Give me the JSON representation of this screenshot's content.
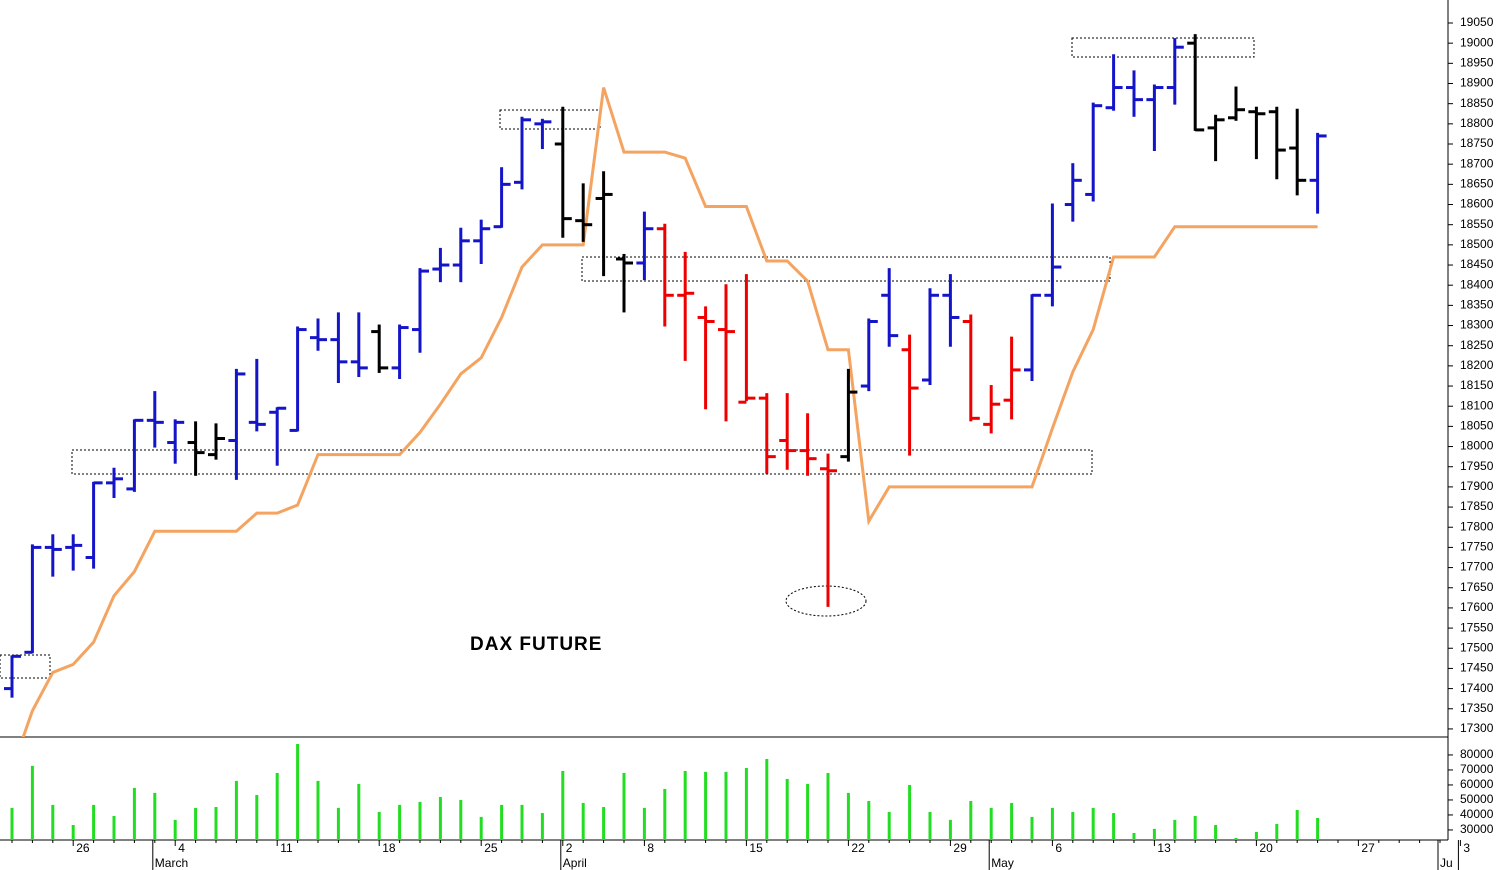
{
  "chart_data": {
    "type": "ohlc",
    "title": "DAX FUTURE",
    "categories": [
      null,
      null,
      null,
      "26",
      null,
      null,
      null,
      null,
      "4",
      null,
      null,
      null,
      null,
      "11",
      null,
      null,
      null,
      null,
      "18",
      null,
      null,
      null,
      null,
      "25",
      null,
      null,
      null,
      "2",
      null,
      null,
      null,
      "8",
      null,
      null,
      null,
      null,
      "15",
      null,
      null,
      null,
      null,
      "22",
      null,
      null,
      null,
      null,
      "29",
      null,
      null,
      null,
      null,
      "6",
      null,
      null,
      null,
      null,
      "13",
      null,
      null,
      null,
      null,
      "20",
      null,
      null,
      null,
      null,
      "27",
      null,
      null,
      null,
      null,
      "3"
    ],
    "months": [
      null,
      null,
      null,
      null,
      null,
      null,
      null,
      "March",
      null,
      null,
      null,
      null,
      null,
      null,
      null,
      null,
      null,
      null,
      null,
      null,
      null,
      null,
      null,
      null,
      null,
      null,
      null,
      "April",
      null,
      null,
      null,
      null,
      null,
      null,
      null,
      null,
      null,
      null,
      null,
      null,
      null,
      null,
      null,
      null,
      null,
      null,
      null,
      null,
      "May",
      null,
      null,
      null,
      null,
      null,
      null,
      null,
      null,
      null,
      null,
      null,
      null,
      null,
      null,
      null,
      null,
      null,
      null,
      null,
      null,
      null,
      "Ju"
    ],
    "open": [
      17400,
      17490,
      17750,
      17750,
      17725,
      17910,
      17895,
      18065,
      18010,
      18010,
      17980,
      18015,
      18060,
      18085,
      18040,
      18270,
      18265,
      18210,
      18285,
      18195,
      18290,
      18440,
      18450,
      18510,
      18545,
      18655,
      18800,
      18750,
      18560,
      18615,
      18465,
      18455,
      18540,
      18375,
      18320,
      18290,
      18110,
      18120,
      18015,
      17990,
      17945,
      17975,
      18150,
      18375,
      18240,
      18165,
      18375,
      18310,
      18055,
      18115,
      18190,
      18375,
      18600,
      18625,
      18840,
      18890,
      18860,
      18890,
      19000,
      18790,
      18815,
      18830,
      18830,
      18740,
      18660,
      null,
      null,
      null,
      null,
      null,
      null
    ],
    "high": [
      17480,
      17755,
      17780,
      17780,
      17910,
      17945,
      18065,
      18135,
      18065,
      18060,
      18055,
      18190,
      18215,
      18095,
      18295,
      18315,
      18330,
      18330,
      18300,
      18300,
      18440,
      18490,
      18540,
      18560,
      18690,
      18815,
      18810,
      18840,
      18650,
      18680,
      18475,
      18580,
      18550,
      18480,
      18345,
      18400,
      18425,
      18130,
      18130,
      18080,
      17980,
      18190,
      18315,
      18440,
      18275,
      18390,
      18425,
      18325,
      18150,
      18270,
      18375,
      18600,
      18700,
      18850,
      18970,
      18930,
      18895,
      19010,
      19020,
      18820,
      18890,
      18840,
      18840,
      18835,
      18775,
      null,
      null,
      null,
      null,
      null,
      null
    ],
    "low": [
      17380,
      17490,
      17680,
      17695,
      17700,
      17875,
      17890,
      18000,
      17960,
      17930,
      17970,
      17920,
      18040,
      17955,
      18040,
      18240,
      18160,
      18175,
      18185,
      18170,
      18235,
      18410,
      18410,
      18455,
      18545,
      18640,
      18740,
      18520,
      18510,
      18425,
      18335,
      18415,
      18300,
      18215,
      18095,
      18065,
      18115,
      17935,
      17945,
      17930,
      17605,
      17965,
      18140,
      18250,
      17980,
      18155,
      18250,
      18065,
      18035,
      18070,
      18165,
      18350,
      18560,
      18610,
      18835,
      18820,
      18735,
      18850,
      18785,
      18710,
      18810,
      18715,
      18665,
      18625,
      18580,
      null,
      null,
      null,
      null,
      null,
      null
    ],
    "close": [
      17480,
      17750,
      17745,
      17755,
      17910,
      17920,
      18065,
      18060,
      18060,
      17985,
      18020,
      18180,
      18055,
      18095,
      18290,
      18265,
      18210,
      18195,
      18195,
      18295,
      18435,
      18450,
      18510,
      18540,
      18650,
      18810,
      18805,
      18565,
      18550,
      18625,
      18455,
      18540,
      18375,
      18380,
      18310,
      18285,
      18120,
      17975,
      17990,
      17970,
      17940,
      18135,
      18310,
      18275,
      18145,
      18375,
      18320,
      18070,
      18105,
      18190,
      18375,
      18445,
      18660,
      18845,
      18890,
      18860,
      18890,
      18990,
      18785,
      18810,
      18835,
      18825,
      18735,
      18660,
      18770,
      null,
      null,
      null,
      null,
      null,
      null
    ],
    "bar_colors": [
      "#1414c8",
      "#1414c8",
      "#1414c8",
      "#1414c8",
      "#1414c8",
      "#1414c8",
      "#1414c8",
      "#1414c8",
      "#1414c8",
      "#000000",
      "#000000",
      "#1414c8",
      "#1414c8",
      "#1414c8",
      "#1414c8",
      "#1414c8",
      "#1414c8",
      "#1414c8",
      "#000000",
      "#1414c8",
      "#1414c8",
      "#1414c8",
      "#1414c8",
      "#1414c8",
      "#1414c8",
      "#1414c8",
      "#1414c8",
      "#000000",
      "#000000",
      "#000000",
      "#000000",
      "#1414c8",
      "#ee0000",
      "#ee0000",
      "#ee0000",
      "#ee0000",
      "#ee0000",
      "#ee0000",
      "#ee0000",
      "#ee0000",
      "#ee0000",
      "#000000",
      "#1414c8",
      "#1414c8",
      "#ee0000",
      "#1414c8",
      "#1414c8",
      "#ee0000",
      "#ee0000",
      "#ee0000",
      "#1414c8",
      "#1414c8",
      "#1414c8",
      "#1414c8",
      "#1414c8",
      "#1414c8",
      "#1414c8",
      "#1414c8",
      "#000000",
      "#000000",
      "#000000",
      "#000000",
      "#000000",
      "#000000",
      "#1414c8",
      null,
      null,
      null,
      null,
      null,
      null
    ],
    "line": {
      "color": "#f4a460",
      "values": [
        17200,
        17345,
        17440,
        17460,
        17515,
        17630,
        17690,
        17790,
        17790,
        17790,
        17790,
        17790,
        17835,
        17835,
        17855,
        17980,
        17980,
        17980,
        17980,
        17980,
        18035,
        18105,
        18180,
        18220,
        18320,
        18445,
        18500,
        18500,
        18500,
        18890,
        18730,
        18730,
        18730,
        18715,
        18595,
        18595,
        18595,
        18460,
        18460,
        18410,
        18240,
        18240,
        17815,
        17900,
        17900,
        17900,
        17900,
        17900,
        17900,
        17900,
        17900,
        18045,
        18185,
        18290,
        18470,
        18470,
        18470,
        18545,
        18545,
        18545,
        18545,
        18545,
        18545,
        18545,
        18545,
        null,
        null,
        null,
        null,
        null,
        null
      ]
    },
    "ylim": [
      17280,
      19107
    ],
    "yticks": [
      17300,
      17350,
      17400,
      17450,
      17500,
      17550,
      17600,
      17650,
      17700,
      17750,
      17800,
      17850,
      17900,
      17950,
      18000,
      18050,
      18100,
      18150,
      18200,
      18250,
      18300,
      18350,
      18400,
      18450,
      18500,
      18550,
      18600,
      18650,
      18700,
      18750,
      18800,
      18850,
      18900,
      18950,
      19000,
      19050
    ],
    "volume": {
      "color": "#22dd22",
      "ylim": [
        23300,
        91300
      ],
      "yticks": [
        30000,
        40000,
        50000,
        60000,
        70000,
        80000
      ],
      "values": [
        44700,
        72700,
        46700,
        33300,
        46700,
        39300,
        58000,
        54700,
        36700,
        44700,
        45300,
        62700,
        53300,
        68000,
        87300,
        62700,
        44700,
        60700,
        42000,
        46700,
        48700,
        52000,
        50000,
        38700,
        46700,
        46700,
        41300,
        69300,
        48000,
        45300,
        68000,
        44700,
        57300,
        69300,
        68700,
        68700,
        71300,
        77300,
        64000,
        60700,
        68000,
        54700,
        49300,
        42000,
        60000,
        42000,
        36700,
        49300,
        44700,
        48000,
        38700,
        44700,
        42000,
        44700,
        41300,
        28000,
        30700,
        36700,
        39300,
        33300,
        24700,
        28700,
        34000,
        43300,
        38000,
        null,
        null,
        null,
        null,
        null,
        null
      ]
    }
  }
}
